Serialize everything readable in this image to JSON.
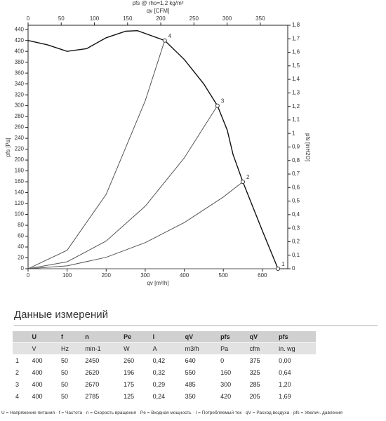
{
  "chart_data": {
    "type": "line",
    "title": "pfs @ rho=1,2 kg/m³",
    "x_label": "qv [m³/h]",
    "x2_label": "qv [CFM]",
    "y_label": "pfs [Pa]",
    "y2_label": "pfs [inH2O]",
    "xlim": [
      0,
      665
    ],
    "xticks": [
      0,
      100,
      200,
      300,
      400,
      500,
      600
    ],
    "x2lim": [
      0,
      391.4
    ],
    "x2ticks": [
      0,
      50,
      100,
      150,
      200,
      250,
      300,
      350
    ],
    "ylim": [
      0,
      448
    ],
    "yticks": [
      0,
      20,
      40,
      60,
      80,
      100,
      120,
      140,
      160,
      180,
      200,
      220,
      240,
      260,
      280,
      300,
      320,
      340,
      360,
      380,
      400,
      420,
      440
    ],
    "y2lim": [
      0,
      1.8
    ],
    "y2ticks": [
      0,
      {
        "value": 0.1,
        "label": "0,1"
      },
      {
        "value": 0.2,
        "label": "0,2"
      },
      {
        "value": 0.3,
        "label": "0,3"
      },
      {
        "value": 0.4,
        "label": "0,4"
      },
      {
        "value": 0.5,
        "label": "0,5"
      },
      {
        "value": 0.6,
        "label": "0,6"
      },
      {
        "value": 0.7,
        "label": "0,7"
      },
      {
        "value": 0.8,
        "label": "0,8"
      },
      {
        "value": 0.9,
        "label": "0,9"
      },
      1,
      {
        "value": 1.1,
        "label": "1,1"
      },
      {
        "value": 1.2,
        "label": "1,2"
      },
      {
        "value": 1.3,
        "label": "1,3"
      },
      {
        "value": 1.4,
        "label": "1,4"
      },
      {
        "value": 1.5,
        "label": "1,5"
      },
      {
        "value": 1.6,
        "label": "1,6"
      },
      {
        "value": 1.7,
        "label": "1,7"
      },
      {
        "value": 1.8,
        "label": "1,8"
      }
    ],
    "series": [
      {
        "color": "#111111",
        "x": [
          0,
          50,
          100,
          150,
          200,
          250,
          280,
          350,
          400,
          450,
          485,
          510,
          525,
          550,
          600,
          640
        ],
        "values": [
          420,
          412,
          400,
          405,
          425,
          437,
          438,
          420,
          385,
          340,
          300,
          255,
          210,
          160,
          70,
          0
        ]
      },
      {
        "color": "#555555",
        "x": [
          0,
          100,
          200,
          300,
          350
        ],
        "values": [
          0,
          34,
          137,
          309,
          420
        ]
      },
      {
        "color": "#555555",
        "x": [
          0,
          100,
          200,
          300,
          400,
          485
        ],
        "values": [
          0,
          12.8,
          51,
          115,
          204,
          300
        ]
      },
      {
        "color": "#555555",
        "x": [
          0,
          100,
          200,
          300,
          400,
          500,
          550
        ],
        "values": [
          0,
          5.3,
          21,
          48,
          85,
          132,
          160
        ]
      },
      {
        "color": "#555555",
        "x": [
          0,
          640
        ],
        "values": [
          0,
          0
        ]
      }
    ],
    "annotations": [
      {
        "label": "1",
        "x": 640,
        "y": 0
      },
      {
        "label": "2",
        "x": 550,
        "y": 160
      },
      {
        "label": "3",
        "x": 485,
        "y": 300
      },
      {
        "label": "4",
        "x": 350,
        "y": 420
      }
    ]
  },
  "table": {
    "title": "Данные измерений",
    "header": [
      "",
      "U",
      "f",
      "n",
      "Pe",
      "I",
      "qV",
      "pfs",
      "qV",
      "pfs"
    ],
    "units": [
      "",
      "V",
      "Hz",
      "min-1",
      "W",
      "A",
      "m3/h",
      "Pa",
      "cfm",
      "in. wg"
    ],
    "rows": [
      [
        "1",
        "400",
        "50",
        "2450",
        "260",
        "0,42",
        "640",
        "0",
        "375",
        "0,00"
      ],
      [
        "2",
        "400",
        "50",
        "2620",
        "196",
        "0,32",
        "550",
        "160",
        "325",
        "0,64"
      ],
      [
        "3",
        "400",
        "50",
        "2670",
        "175",
        "0,29",
        "485",
        "300",
        "285",
        "1,20"
      ],
      [
        "4",
        "400",
        "50",
        "2785",
        "125",
        "0,24",
        "350",
        "420",
        "205",
        "1,69"
      ]
    ]
  },
  "footnote": "U = Напряжение питания · f = Частота · n = Скорость вращения · Pe = Входная мощность · I = Потребляемый ток · qV = Расход воздуха · pfs = Увелич. давления"
}
